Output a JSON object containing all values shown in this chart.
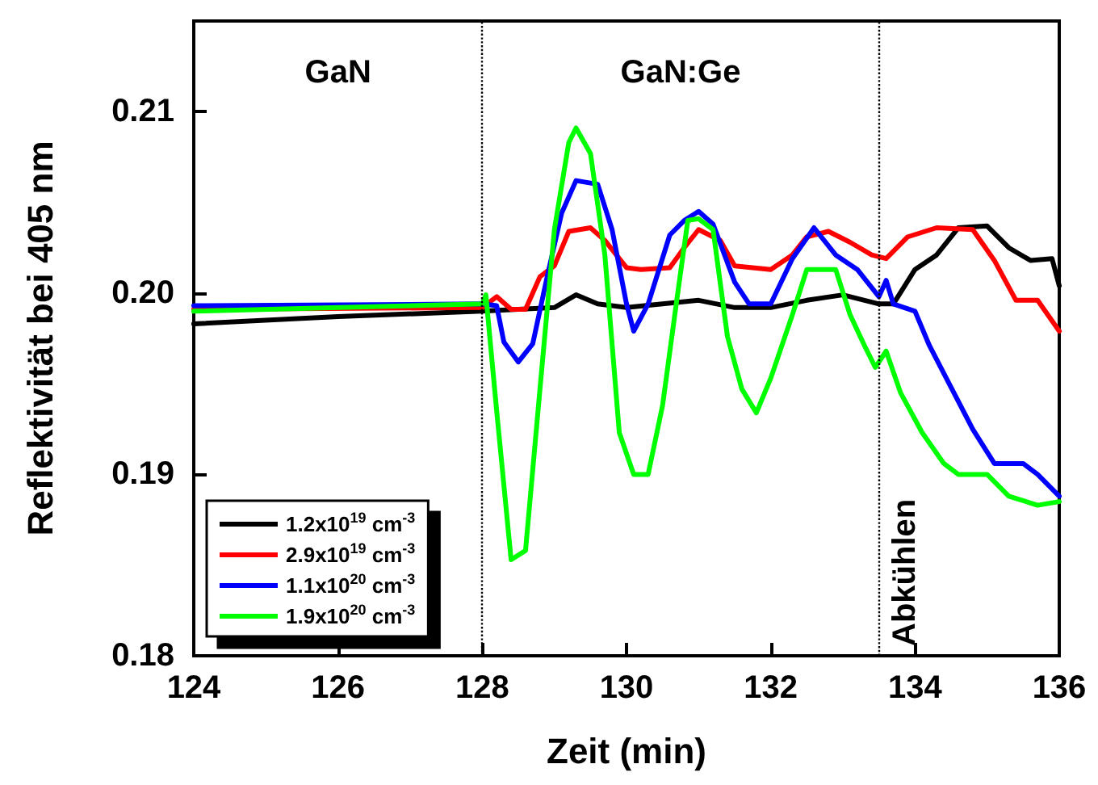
{
  "chart_data": {
    "type": "line",
    "xlabel": "Zeit (min)",
    "ylabel": "Reflektivität bei 405 nm",
    "xlim": [
      124,
      136
    ],
    "xticks": [
      124,
      126,
      128,
      130,
      132,
      134,
      136
    ],
    "ylim": [
      0.18,
      0.215
    ],
    "yticks": [
      {
        "value": 0.18,
        "label": "0.18"
      },
      {
        "value": 0.19,
        "label": "0.19"
      },
      {
        "value": 0.2,
        "label": "0.20"
      },
      {
        "value": 0.21,
        "label": "0.21"
      }
    ],
    "grid": false,
    "legend": "bottom left",
    "marker": "none",
    "line_style": "solid",
    "ref_lines": [
      {
        "axis": "x",
        "value": 128,
        "color": "#000000",
        "line_style": "dotted"
      },
      {
        "axis": "x",
        "value": 133.5,
        "color": "#000000",
        "line_style": "dotted"
      }
    ],
    "annotations": [
      "GaN",
      "GaN:Ge",
      "Abkühlen"
    ],
    "series": [
      {
        "name": "1.2x10$^{19}$ cm$^{-3}$",
        "color": "#000000",
        "x": [
          124,
          126,
          128,
          129,
          129.3,
          129.6,
          130,
          131,
          131.5,
          132,
          132.5,
          133,
          133.5,
          133.7,
          134,
          134.3,
          134.6,
          135,
          135.3,
          135.6,
          135.9,
          136
        ],
        "values": [
          0.1983,
          0.1987,
          0.199,
          0.1992,
          0.1999,
          0.1994,
          0.1992,
          0.1996,
          0.1992,
          0.1992,
          0.1996,
          0.1999,
          0.1994,
          0.1994,
          0.2013,
          0.2021,
          0.2036,
          0.2037,
          0.2025,
          0.2018,
          0.2019,
          0.2004
        ]
      },
      {
        "name": "2.9x10$^{19}$ cm$^{-3}$",
        "color": "#ff0000",
        "x": [
          124,
          128,
          128.2,
          128.4,
          128.6,
          128.8,
          129,
          129.2,
          129.5,
          129.7,
          130,
          130.2,
          130.6,
          130.8,
          131,
          131.3,
          131.5,
          132,
          132.3,
          132.5,
          132.8,
          133.1,
          133.4,
          133.6,
          133.9,
          134.3,
          134.8,
          135.1,
          135.4,
          135.7,
          136
        ],
        "values": [
          0.1991,
          0.1992,
          0.1998,
          0.1991,
          0.1991,
          0.2009,
          0.2015,
          0.2034,
          0.2036,
          0.2029,
          0.2014,
          0.2013,
          0.2014,
          0.2025,
          0.2035,
          0.2029,
          0.2015,
          0.2013,
          0.2021,
          0.2031,
          0.2034,
          0.2028,
          0.2021,
          0.2019,
          0.2031,
          0.2036,
          0.2035,
          0.2018,
          0.1996,
          0.1996,
          0.1979
        ]
      },
      {
        "name": "1.1x10$^{20}$ cm$^{-3}$",
        "color": "#0000ff",
        "x": [
          124,
          128,
          128.2,
          128.3,
          128.5,
          128.7,
          128.9,
          129.1,
          129.3,
          129.6,
          129.8,
          130,
          130.1,
          130.3,
          130.6,
          130.8,
          131,
          131.2,
          131.5,
          131.7,
          132,
          132.3,
          132.6,
          132.9,
          133.2,
          133.5,
          133.6,
          133.7,
          134,
          134.2,
          134.5,
          134.8,
          135.1,
          135.5,
          135.7,
          136
        ],
        "values": [
          0.1993,
          0.1994,
          0.1993,
          0.1973,
          0.1962,
          0.1972,
          0.2009,
          0.2044,
          0.2062,
          0.206,
          0.2035,
          0.1994,
          0.1979,
          0.1994,
          0.2032,
          0.204,
          0.2045,
          0.2038,
          0.2006,
          0.1994,
          0.1994,
          0.2019,
          0.2036,
          0.2021,
          0.2013,
          0.1998,
          0.2007,
          0.1994,
          0.199,
          0.1971,
          0.1948,
          0.1925,
          0.1906,
          0.1906,
          0.19,
          0.1888
        ]
      },
      {
        "name": "1.9x10$^{20}$ cm$^{-3}$",
        "color": "#00ff00",
        "x": [
          124,
          128,
          128.05,
          128.2,
          128.4,
          128.6,
          128.8,
          129,
          129.2,
          129.3,
          129.5,
          129.7,
          129.9,
          130.1,
          130.3,
          130.5,
          130.7,
          130.85,
          131,
          131.2,
          131.4,
          131.6,
          131.8,
          132,
          132.3,
          132.5,
          132.9,
          133.1,
          133.3,
          133.45,
          133.6,
          133.8,
          134.1,
          134.4,
          134.6,
          135,
          135.3,
          135.7,
          136
        ],
        "values": [
          0.199,
          0.1994,
          0.1999,
          0.1935,
          0.1853,
          0.1858,
          0.1947,
          0.2035,
          0.2083,
          0.2091,
          0.2077,
          0.2021,
          0.1923,
          0.19,
          0.19,
          0.1938,
          0.1997,
          0.204,
          0.2041,
          0.2035,
          0.1976,
          0.1947,
          0.1934,
          0.1953,
          0.1988,
          0.2013,
          0.2013,
          0.1988,
          0.1971,
          0.1959,
          0.1968,
          0.1945,
          0.1923,
          0.1906,
          0.19,
          0.19,
          0.1888,
          0.1883,
          0.1885
        ]
      }
    ]
  }
}
